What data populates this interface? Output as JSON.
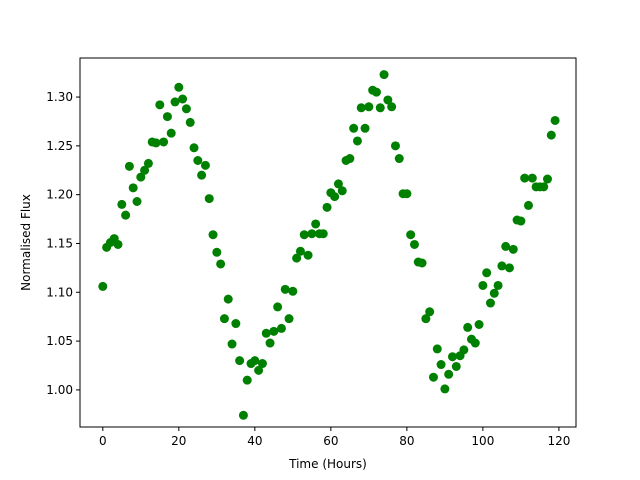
{
  "chart_data": {
    "type": "scatter",
    "title": "",
    "xlabel": "Time (Hours)",
    "ylabel": "Normalised Flux",
    "xlim": [
      -6,
      124.5
    ],
    "ylim": [
      0.962,
      1.34
    ],
    "xticks": [
      0,
      20,
      40,
      60,
      80,
      100,
      120
    ],
    "yticks": [
      1.0,
      1.05,
      1.1,
      1.15,
      1.2,
      1.25,
      1.3
    ],
    "ytick_labels": [
      "1.00",
      "1.05",
      "1.10",
      "1.15",
      "1.20",
      "1.25",
      "1.30"
    ],
    "grid": false,
    "legend": "none",
    "marker_color": "#008000",
    "series": [
      {
        "x": [
          0,
          1,
          2,
          3,
          4,
          5,
          6,
          7,
          8,
          9,
          10,
          11,
          12,
          13,
          14,
          15,
          16,
          17,
          18,
          19,
          20,
          21,
          22,
          23,
          24,
          25,
          26,
          27,
          28,
          29,
          30,
          31,
          32,
          33,
          34,
          35,
          36,
          37,
          38,
          39,
          40,
          41,
          42,
          43,
          44,
          45,
          46,
          47,
          48,
          49,
          50,
          51,
          52,
          53,
          54,
          55,
          56,
          57,
          58,
          59,
          60,
          61,
          62,
          63,
          64,
          65,
          66,
          67,
          68,
          69,
          70,
          71,
          72,
          73,
          74,
          75,
          76,
          77,
          78,
          79,
          80,
          81,
          82,
          83,
          84,
          85,
          86,
          87,
          88,
          89,
          90,
          91,
          92,
          93,
          94,
          95,
          96,
          97,
          98,
          99,
          100,
          101,
          102,
          103,
          104,
          105,
          106,
          107,
          108,
          109,
          110,
          111,
          112,
          113,
          114,
          115,
          116,
          117,
          118,
          119
        ],
        "y": [
          1.106,
          1.146,
          1.151,
          1.155,
          1.149,
          1.19,
          1.179,
          1.229,
          1.207,
          1.193,
          1.218,
          1.225,
          1.232,
          1.254,
          1.253,
          1.292,
          1.254,
          1.28,
          1.263,
          1.295,
          1.31,
          1.298,
          1.288,
          1.274,
          1.248,
          1.235,
          1.22,
          1.23,
          1.196,
          1.159,
          1.141,
          1.129,
          1.073,
          1.093,
          1.047,
          1.068,
          1.03,
          0.974,
          1.01,
          1.027,
          1.03,
          1.02,
          1.027,
          1.058,
          1.048,
          1.06,
          1.085,
          1.063,
          1.103,
          1.073,
          1.101,
          1.135,
          1.142,
          1.159,
          1.138,
          1.16,
          1.17,
          1.16,
          1.16,
          1.187,
          1.202,
          1.198,
          1.211,
          1.204,
          1.235,
          1.237,
          1.268,
          1.255,
          1.289,
          1.268,
          1.29,
          1.307,
          1.305,
          1.289,
          1.323,
          1.297,
          1.29,
          1.25,
          1.237,
          1.201,
          1.201,
          1.159,
          1.149,
          1.131,
          1.13,
          1.073,
          1.08,
          1.013,
          1.042,
          1.026,
          1.001,
          1.016,
          1.034,
          1.024,
          1.035,
          1.041,
          1.064,
          1.052,
          1.048,
          1.067,
          1.107,
          1.12,
          1.089,
          1.099,
          1.107,
          1.127,
          1.147,
          1.125,
          1.144,
          1.174,
          1.173,
          1.217,
          1.189,
          1.217,
          1.208,
          1.208,
          1.208,
          1.216,
          1.261,
          1.276
        ]
      }
    ]
  }
}
